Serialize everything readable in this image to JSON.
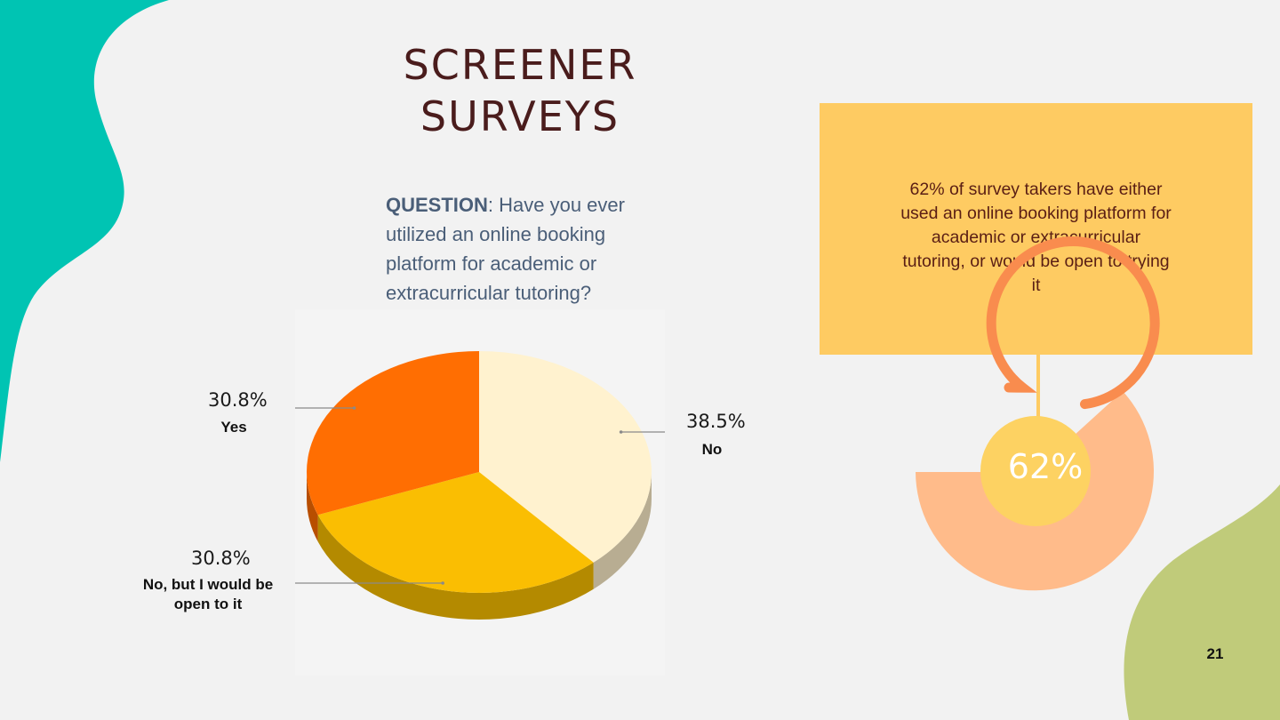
{
  "slide": {
    "title_line1": "SCREENER",
    "title_line2": "SURVEYS",
    "question_label": "QUESTION",
    "question_text": ": Have you ever utilized an online booking platform for academic or extracurricular tutoring?",
    "callout": "62% of survey takers have either used an online booking platform for academic or extracurricular tutoring, or would be open to trying it",
    "gauge_value_label": "62%",
    "gauge_fraction": 0.62,
    "page_number": "21"
  },
  "colors": {
    "teal": "#00c4b3",
    "olive": "#c0cb7a",
    "title": "#4a1c1c",
    "callout_bg": "#fecb62",
    "gauge_outer": "#ffbb8a",
    "gauge_ring": "#f98c4e",
    "gauge_core": "#fdd262"
  },
  "chart_data": {
    "type": "pie",
    "title": "",
    "slices": [
      {
        "label": "No",
        "value": 38.5,
        "value_label": "38.5%",
        "color": "#fff2cf",
        "side_color": "#b8ad92"
      },
      {
        "label": "No, but I would be open to it",
        "value": 30.8,
        "value_label": "30.8%",
        "color": "#fabe02",
        "side_color": "#b48a00"
      },
      {
        "label": "Yes",
        "value": 30.8,
        "value_label": "30.8%",
        "color": "#ff6e02",
        "side_color": "#b84e00"
      }
    ]
  }
}
